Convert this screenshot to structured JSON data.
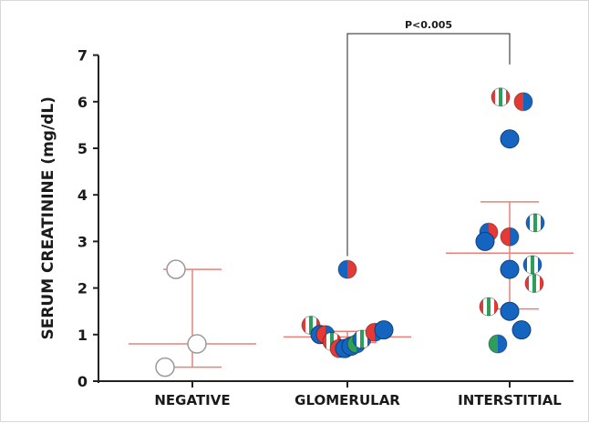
{
  "chart_data": {
    "type": "scatter",
    "title": "",
    "xlabel": "",
    "ylabel": "SERUM CREATININE (mg/dL)",
    "ylim": [
      0,
      7
    ],
    "yticks": [
      0,
      1,
      2,
      3,
      4,
      5,
      6,
      7
    ],
    "grid": false,
    "categories": [
      "NEGATIVE",
      "GLOMERULAR",
      "INTERSTITIAL"
    ],
    "colors": {
      "blue": "#1565c0",
      "red": "#e53935",
      "green": "#2e9e5b",
      "white": "#ffffff",
      "summary_line": "#e8807a",
      "axis": "#222222"
    },
    "summary": [
      {
        "category": "NEGATIVE",
        "mean": 0.8,
        "upper": 2.4,
        "lower": 0.3
      },
      {
        "category": "GLOMERULAR",
        "mean": 0.95,
        "upper": 1.07,
        "lower": 0.83
      },
      {
        "category": "INTERSTITIAL",
        "mean": 2.75,
        "upper": 3.85,
        "lower": 1.55
      }
    ],
    "points": [
      {
        "category": "NEGATIVE",
        "offset": -0.18,
        "y": 2.4,
        "style": "white"
      },
      {
        "category": "NEGATIVE",
        "offset": 0.05,
        "y": 0.8,
        "style": "white"
      },
      {
        "category": "NEGATIVE",
        "offset": -0.3,
        "y": 0.3,
        "style": "white"
      },
      {
        "category": "GLOMERULAR",
        "offset": 0.0,
        "y": 2.4,
        "style": "blue-red"
      },
      {
        "category": "GLOMERULAR",
        "offset": -0.4,
        "y": 1.2,
        "style": "red-green-stripe"
      },
      {
        "category": "GLOMERULAR",
        "offset": -0.3,
        "y": 1.0,
        "style": "blue"
      },
      {
        "category": "GLOMERULAR",
        "offset": -0.24,
        "y": 1.0,
        "style": "red-blue"
      },
      {
        "category": "GLOMERULAR",
        "offset": -0.17,
        "y": 0.85,
        "style": "red-green-stripe"
      },
      {
        "category": "GLOMERULAR",
        "offset": -0.09,
        "y": 0.7,
        "style": "red-blue"
      },
      {
        "category": "GLOMERULAR",
        "offset": -0.03,
        "y": 0.7,
        "style": "blue"
      },
      {
        "category": "GLOMERULAR",
        "offset": 0.04,
        "y": 0.75,
        "style": "blue"
      },
      {
        "category": "GLOMERULAR",
        "offset": 0.1,
        "y": 0.8,
        "style": "green-blue"
      },
      {
        "category": "GLOMERULAR",
        "offset": 0.16,
        "y": 0.9,
        "style": "blue-green-stripe"
      },
      {
        "category": "GLOMERULAR",
        "offset": 0.3,
        "y": 1.05,
        "style": "red-blue"
      },
      {
        "category": "GLOMERULAR",
        "offset": 0.4,
        "y": 1.1,
        "style": "blue"
      },
      {
        "category": "INTERSTITIAL",
        "offset": -0.1,
        "y": 6.1,
        "style": "red-green-stripe"
      },
      {
        "category": "INTERSTITIAL",
        "offset": 0.15,
        "y": 6.0,
        "style": "red-blue"
      },
      {
        "category": "INTERSTITIAL",
        "offset": 0.0,
        "y": 5.2,
        "style": "blue"
      },
      {
        "category": "INTERSTITIAL",
        "offset": 0.28,
        "y": 3.4,
        "style": "blue-green-stripe"
      },
      {
        "category": "INTERSTITIAL",
        "offset": -0.23,
        "y": 3.2,
        "style": "blue-red"
      },
      {
        "category": "INTERSTITIAL",
        "offset": -0.27,
        "y": 3.0,
        "style": "blue"
      },
      {
        "category": "INTERSTITIAL",
        "offset": 0.0,
        "y": 3.1,
        "style": "red-blue"
      },
      {
        "category": "INTERSTITIAL",
        "offset": 0.25,
        "y": 2.5,
        "style": "blue-green-stripe"
      },
      {
        "category": "INTERSTITIAL",
        "offset": 0.0,
        "y": 2.4,
        "style": "blue"
      },
      {
        "category": "INTERSTITIAL",
        "offset": 0.27,
        "y": 2.1,
        "style": "red-green-stripe"
      },
      {
        "category": "INTERSTITIAL",
        "offset": -0.23,
        "y": 1.6,
        "style": "red-green-stripe"
      },
      {
        "category": "INTERSTITIAL",
        "offset": 0.0,
        "y": 1.5,
        "style": "blue"
      },
      {
        "category": "INTERSTITIAL",
        "offset": 0.13,
        "y": 1.1,
        "style": "blue"
      },
      {
        "category": "INTERSTITIAL",
        "offset": -0.13,
        "y": 0.8,
        "style": "green-blue"
      }
    ],
    "annotations": [
      {
        "text": "P<0.005",
        "from": "GLOMERULAR",
        "to": "INTERSTITIAL",
        "from_y": 2.45,
        "to_y": 6.8,
        "bar_y": 7.5
      }
    ]
  }
}
